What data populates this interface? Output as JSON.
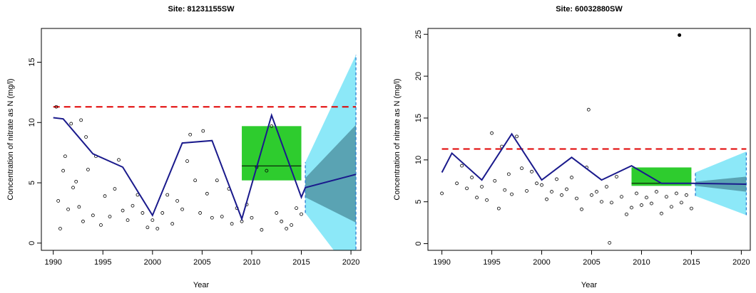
{
  "chart_data": [
    {
      "type": "line",
      "title": "Site:  81231155SW",
      "xlabel": "Year",
      "ylabel": "Concentration of nitrate as N (mg/l)",
      "xlim": [
        1988.8,
        2021.0
      ],
      "ylim": [
        -0.6,
        17.8
      ],
      "xticks": [
        1990,
        1995,
        2000,
        2005,
        2010,
        2015,
        2020
      ],
      "yticks": [
        0,
        5,
        10,
        15
      ],
      "threshold": {
        "color": "#e00000",
        "x": [
          1990,
          2020.5
        ],
        "y": [
          11.3,
          11.3
        ]
      },
      "forecast": {
        "outer_color": "#8ce8f8",
        "inner_color": "#5aa3b3",
        "edge_color": "#2a7fd4",
        "x": [
          2015.4,
          2020.5
        ],
        "outer_low": [
          2.5,
          -3.0
        ],
        "outer_high": [
          6.7,
          15.6
        ],
        "inner_low": [
          3.8,
          1.7
        ],
        "inner_high": [
          5.4,
          9.8
        ]
      },
      "box": {
        "color": "#2ecc2e",
        "x": [
          2009,
          2015
        ],
        "low": 5.2,
        "high": 9.7,
        "median": 6.4
      },
      "trend": {
        "color": "#1a1a8c",
        "x": [
          1990,
          1991,
          1994,
          1997,
          2000,
          2003,
          2006,
          2009,
          2012,
          2015,
          2015.4,
          2020.5
        ],
        "y": [
          10.4,
          10.3,
          7.4,
          6.3,
          2.3,
          8.3,
          8.5,
          2.0,
          10.6,
          3.8,
          4.6,
          5.7
        ]
      },
      "points": {
        "x": [
          1990.3,
          1990.5,
          1990.7,
          1991,
          1991.2,
          1991.5,
          1991.8,
          1992,
          1992.3,
          1992.6,
          1992.8,
          1993,
          1993.3,
          1993.5,
          1994,
          1994.3,
          1994.8,
          1995.2,
          1995.7,
          1996.2,
          1996.6,
          1997,
          1997.5,
          1998,
          1998.5,
          1999,
          1999.5,
          2000,
          2000.5,
          2001,
          2001.5,
          2002,
          2002.5,
          2003,
          2003.5,
          2003.8,
          2004.3,
          2004.8,
          2005.1,
          2005.5,
          2006,
          2006.5,
          2007,
          2007.7,
          2008,
          2008.5,
          2009,
          2009.5,
          2010,
          2010.5,
          2011,
          2011.5,
          2012,
          2012.5,
          2013,
          2013.5,
          2014,
          2014.5,
          2015
        ],
        "y": [
          11.3,
          3.5,
          1.2,
          6.0,
          7.2,
          2.8,
          9.9,
          4.6,
          5.1,
          3.0,
          10.2,
          1.8,
          8.8,
          6.1,
          2.3,
          7.2,
          1.5,
          3.9,
          2.2,
          4.5,
          6.9,
          2.7,
          1.9,
          3.1,
          4.0,
          2.5,
          1.3,
          1.9,
          1.2,
          2.5,
          4.0,
          1.6,
          3.5,
          2.8,
          6.8,
          9.0,
          5.2,
          2.5,
          9.3,
          4.1,
          2.1,
          5.2,
          2.2,
          4.5,
          1.6,
          2.9,
          1.8,
          3.2,
          2.1,
          6.3,
          1.1,
          6.0,
          9.7,
          2.5,
          1.8,
          1.2,
          1.5,
          2.9,
          2.4
        ]
      },
      "outliers": {
        "x": [],
        "y": []
      }
    },
    {
      "type": "line",
      "title": "Site:  60032880SW",
      "xlabel": "Year",
      "ylabel": "Concentration of nitrate as N (mg/l)",
      "xlim": [
        1988.6,
        2020.9
      ],
      "ylim": [
        -0.8,
        25.7
      ],
      "xticks": [
        1990,
        1995,
        2000,
        2005,
        2010,
        2015,
        2020
      ],
      "yticks": [
        0,
        5,
        10,
        15,
        20,
        25
      ],
      "threshold": {
        "color": "#e00000",
        "x": [
          1990,
          2020.5
        ],
        "y": [
          11.3,
          11.3
        ]
      },
      "forecast": {
        "outer_color": "#8ce8f8",
        "inner_color": "#5aa3b3",
        "edge_color": "#2a7fd4",
        "x": [
          2015.4,
          2020.5
        ],
        "outer_low": [
          5.7,
          3.4
        ],
        "outer_high": [
          8.5,
          11.0
        ],
        "inner_low": [
          6.9,
          6.2
        ],
        "inner_high": [
          7.4,
          8.0
        ]
      },
      "box": {
        "color": "#2ecc2e",
        "x": [
          2009,
          2015
        ],
        "low": 6.9,
        "high": 9.1,
        "median": 7.2
      },
      "trend": {
        "color": "#1a1a8c",
        "x": [
          1990,
          1991,
          1994,
          1997,
          2000,
          2003,
          2006,
          2009,
          2012,
          2015,
          2020.5
        ],
        "y": [
          8.5,
          10.8,
          7.6,
          13.1,
          7.6,
          10.3,
          7.6,
          9.3,
          7.2,
          7.2,
          7.1
        ]
      },
      "points": {
        "x": [
          1990,
          1991.5,
          1992,
          1992.5,
          1993,
          1993.5,
          1994,
          1994.5,
          1995,
          1995.3,
          1995.7,
          1996,
          1996.3,
          1996.7,
          1997,
          1997.5,
          1998,
          1998.5,
          1999,
          1999.5,
          2000,
          2000.5,
          2001,
          2001.5,
          2002,
          2002.5,
          2003,
          2003.5,
          2004,
          2004.5,
          2004.7,
          2005,
          2005.5,
          2006,
          2006.5,
          2006.8,
          2007,
          2007.5,
          2008,
          2008.5,
          2009,
          2009.5,
          2010,
          2010.5,
          2011,
          2011.5,
          2012,
          2012.5,
          2013,
          2013.5,
          2014,
          2014.5,
          2015
        ],
        "y": [
          6.0,
          7.2,
          9.3,
          6.6,
          7.9,
          5.5,
          6.8,
          5.2,
          13.2,
          7.5,
          4.2,
          11.6,
          6.4,
          8.3,
          5.9,
          12.8,
          9.0,
          6.3,
          8.6,
          7.2,
          7.0,
          5.3,
          6.2,
          7.7,
          5.8,
          6.5,
          7.9,
          5.4,
          4.1,
          9.1,
          16.0,
          5.8,
          6.2,
          5.0,
          6.8,
          0.1,
          4.9,
          8.0,
          5.6,
          3.5,
          4.3,
          6.0,
          4.6,
          5.5,
          4.8,
          6.2,
          3.6,
          5.6,
          4.4,
          6.0,
          4.9,
          5.8,
          4.2
        ]
      },
      "outliers": {
        "x": [
          2013.8
        ],
        "y": [
          24.9
        ]
      }
    }
  ]
}
